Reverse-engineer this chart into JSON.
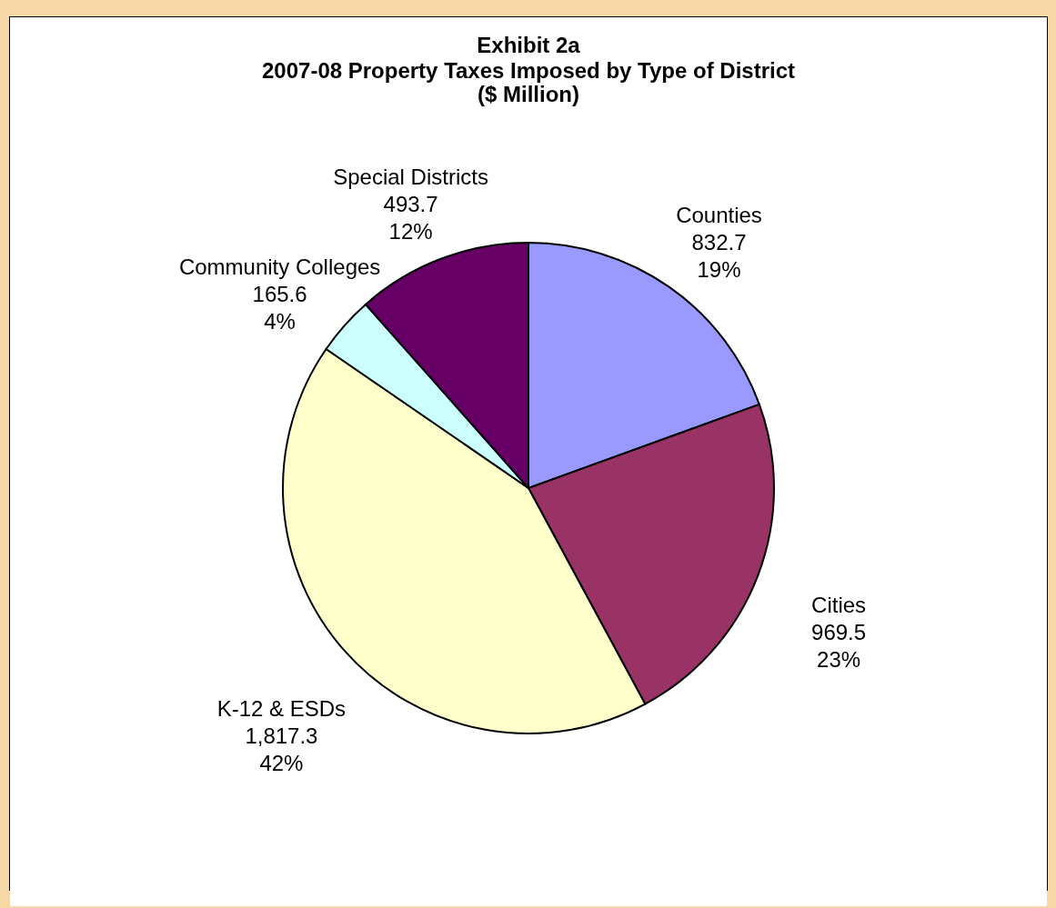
{
  "chart_data": {
    "type": "pie",
    "title": "Exhibit 2a",
    "subtitle": "2007-08 Property Taxes Imposed by Type of District\n($ Million)",
    "categories": [
      "Counties",
      "Cities",
      "K-12 & ESDs",
      "Community Colleges",
      "Special Districts"
    ],
    "values": [
      832.7,
      969.5,
      1817.3,
      165.6,
      493.7
    ],
    "colors": [
      "#9999ff",
      "#993366",
      "#ffffcc",
      "#ccffff",
      "#660066"
    ],
    "value_labels": [
      "832.7\n19%",
      "969.5\n23%",
      "1,817.3\n42%",
      "165.6\n4%",
      "493.7\n12%"
    ],
    "legend": false
  }
}
